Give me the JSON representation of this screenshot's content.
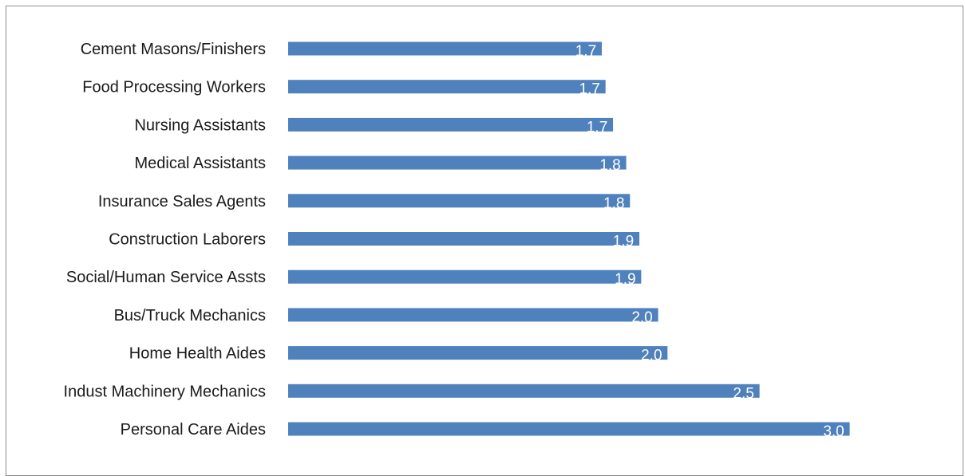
{
  "chart_data": {
    "type": "bar",
    "orientation": "horizontal",
    "title": "",
    "xlabel": "",
    "ylabel": "",
    "categories": [
      "Cement Masons/Finishers",
      "Food Processing Workers",
      "Nursing Assistants",
      "Medical Assistants",
      "Insurance Sales Agents",
      "Construction Laborers",
      "Social/Human Service Assts",
      "Bus/Truck Mechanics",
      "Home Health Aides",
      "Indust Machinery Mechanics",
      "Personal Care Aides"
    ],
    "values": [
      1.67,
      1.69,
      1.73,
      1.8,
      1.82,
      1.87,
      1.88,
      1.97,
      2.02,
      2.51,
      2.99
    ],
    "value_labels": [
      "1.7",
      "1.7",
      "1.7",
      "1.8",
      "1.8",
      "1.9",
      "1.9",
      "2.0",
      "2.0",
      "2.5",
      "3.0"
    ],
    "xlim": [
      0,
      3.0
    ],
    "grid": false,
    "legend": "none",
    "colors": {
      "bar": "#4f81bd",
      "value_label": "#ffffff",
      "category_label": "#1a1a1a",
      "frame": "#8c8c8c"
    }
  }
}
